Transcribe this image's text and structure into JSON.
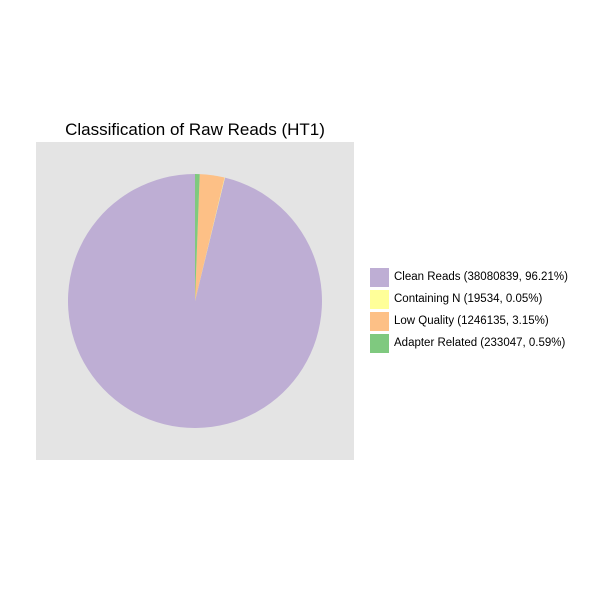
{
  "chart_data": {
    "type": "pie",
    "title": "Classification of Raw Reads (HT1)",
    "slices": [
      {
        "label": "Clean Reads (38080839, 96.21%)",
        "count": 38080839,
        "percent": 96.21,
        "color": "#beaed4"
      },
      {
        "label": "Containing N (19534, 0.05%)",
        "count": 19534,
        "percent": 0.05,
        "color": "#ffff99"
      },
      {
        "label": "Low Quality (1246135, 3.15%)",
        "count": 1246135,
        "percent": 3.15,
        "color": "#fdc086"
      },
      {
        "label": "Adapter Related (233047, 0.59%)",
        "count": 233047,
        "percent": 0.59,
        "color": "#7fc97f"
      }
    ],
    "legend_position": "right",
    "panel_background": "#e4e4e4"
  }
}
